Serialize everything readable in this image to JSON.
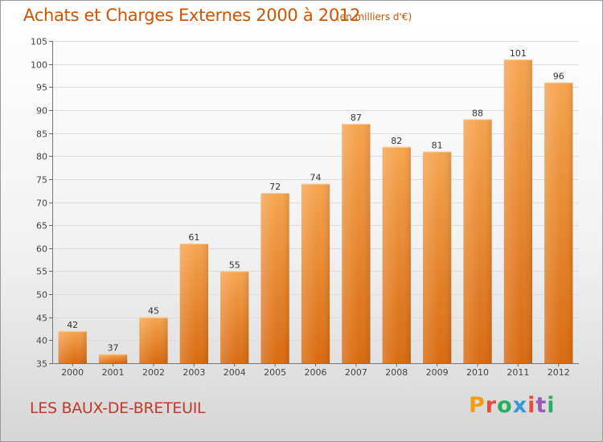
{
  "header": {
    "title": "Achats et Charges Externes 2000 à 2012",
    "subtitle": "(en milliers d'€)"
  },
  "footer": {
    "commune": "LES BAUX-DE-BRETEUIL",
    "brand": "Proxiti",
    "brand_colors": [
      "#f39c12",
      "#e74c3c",
      "#27ae60",
      "#3498db",
      "#e74c3c",
      "#9b59b6",
      "#27ae60"
    ]
  },
  "chart_data": {
    "type": "bar",
    "categories": [
      "2000",
      "2001",
      "2002",
      "2003",
      "2004",
      "2005",
      "2006",
      "2007",
      "2008",
      "2009",
      "2010",
      "2011",
      "2012"
    ],
    "values": [
      42,
      37,
      45,
      61,
      55,
      72,
      74,
      87,
      82,
      81,
      88,
      101,
      96
    ],
    "ylim": [
      35,
      105
    ],
    "yticks": [
      35,
      40,
      45,
      50,
      55,
      60,
      65,
      70,
      75,
      80,
      85,
      90,
      95,
      100,
      105
    ],
    "grid": true,
    "bar_color_top": "#f6a44f",
    "bar_color_bottom": "#d86a10"
  }
}
